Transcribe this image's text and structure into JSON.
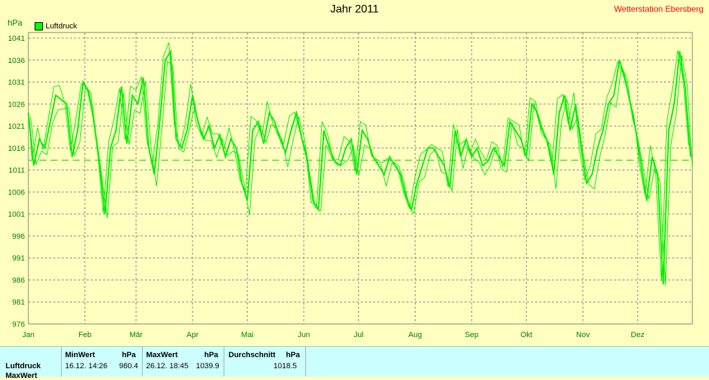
{
  "title": "Jahr 2011",
  "station": "Wetterstation Ebersberg",
  "unit": "hPa",
  "legend_label": "Luftdruck",
  "colors": {
    "background": "#ffffc0",
    "series": "#00ff00",
    "axis_text": "#008000",
    "grid": "#808080"
  },
  "chart_data": {
    "type": "line",
    "title": "Jahr 2011",
    "ylabel": "hPa",
    "ylim": [
      976,
      1041
    ],
    "yticks": [
      976,
      981,
      986,
      991,
      996,
      1001,
      1006,
      1011,
      1016,
      1021,
      1026,
      1031,
      1036,
      1041
    ],
    "xlabels": [
      "Jan",
      "Feb",
      "Mär",
      "Apr",
      "Mai",
      "Jun",
      "Jul",
      "Aug",
      "Sep",
      "Okt",
      "Nov",
      "Dez"
    ],
    "reference_line": 1013.25,
    "series": [
      {
        "name": "Luftdruck",
        "day": [
          1,
          4,
          7,
          10,
          13,
          16,
          19,
          22,
          25,
          28,
          31,
          34,
          37,
          40,
          43,
          46,
          49,
          52,
          55,
          58,
          61,
          64,
          67,
          70,
          73,
          76,
          79,
          82,
          85,
          88,
          91,
          94,
          97,
          100,
          103,
          106,
          109,
          112,
          115,
          118,
          121,
          124,
          127,
          130,
          133,
          136,
          139,
          142,
          145,
          148,
          151,
          154,
          157,
          160,
          163,
          166,
          169,
          172,
          175,
          178,
          181,
          184,
          187,
          190,
          193,
          196,
          199,
          202,
          205,
          208,
          211,
          214,
          217,
          220,
          223,
          226,
          229,
          232,
          235,
          238,
          241,
          244,
          247,
          250,
          253,
          256,
          259,
          262,
          265,
          268,
          271,
          274,
          277,
          280,
          283,
          286,
          289,
          292,
          295,
          298,
          301,
          304,
          307,
          310,
          313,
          316,
          319,
          322,
          325,
          328,
          331,
          334,
          337,
          340,
          343,
          346,
          349,
          352,
          355,
          358,
          361,
          364
        ],
        "values": [
          1024,
          1012,
          1018,
          1016,
          1022,
          1028,
          1027,
          1026,
          1014,
          1020,
          1031,
          1029,
          1022,
          1012,
          1001,
          1016,
          1020,
          1030,
          1017,
          1028,
          1026,
          1032,
          1016,
          1010,
          1022,
          1036,
          1038,
          1018,
          1016,
          1020,
          1028,
          1022,
          1018,
          1021,
          1016,
          1019,
          1014,
          1018,
          1016,
          1008,
          1004,
          1020,
          1022,
          1017,
          1024,
          1022,
          1018,
          1015,
          1020,
          1024,
          1018,
          1013,
          1004,
          1002,
          1020,
          1016,
          1013,
          1012,
          1016,
          1018,
          1010,
          1020,
          1018,
          1014,
          1012,
          1010,
          1014,
          1012,
          1010,
          1005,
          1002,
          1008,
          1012,
          1016,
          1016,
          1014,
          1012,
          1007,
          1020,
          1014,
          1018,
          1014,
          1016,
          1012,
          1013,
          1016,
          1014,
          1012,
          1022,
          1020,
          1018,
          1014,
          1026,
          1024,
          1020,
          1017,
          1010,
          1024,
          1028,
          1020,
          1026,
          1016,
          1008,
          1010,
          1016,
          1020,
          1026,
          1028,
          1036,
          1032,
          1026,
          1020,
          1012,
          1004,
          1014,
          1010,
          985,
          1020,
          1026,
          1038,
          1030,
          1014
        ]
      }
    ]
  },
  "stats": {
    "row_label": "Luftdruck",
    "row_label2": "MaxWert",
    "min_header": "MinWert",
    "min_unit": "hPa",
    "min_time": "16.12.  14:26",
    "min_value": "980.4",
    "max_header": "MaxWert",
    "max_unit": "hPa",
    "max_time": "26.12.  18:45",
    "max_value": "1039.9",
    "avg_header": "Durchschnitt",
    "avg_unit": "hPa",
    "avg_value": "1018.5"
  }
}
